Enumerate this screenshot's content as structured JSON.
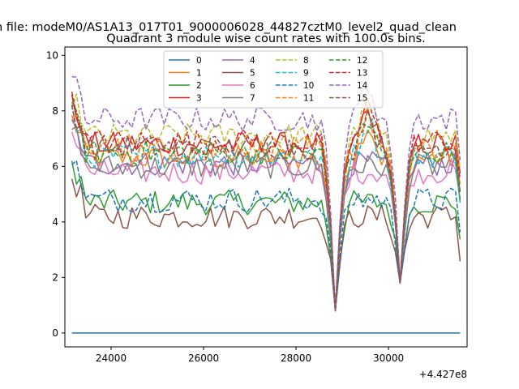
{
  "figure": {
    "suptitle": "n file: modeM0/AS1A13_017T01_9000006028_44827cztM0_level2_quad_clean"
  },
  "chart_data": {
    "type": "line",
    "title": "Quadrant 3 module wise count rates with 100.0s bins.",
    "xlabel": "",
    "ylabel": "",
    "x_offset_label": "+4.427e8",
    "xlim": [
      23000,
      31700
    ],
    "ylim": [
      -0.5,
      10.3
    ],
    "x_ticks": [
      24000,
      26000,
      28000,
      30000
    ],
    "y_ticks": [
      0,
      2,
      4,
      6,
      8,
      10
    ],
    "grid": false,
    "legend": {
      "placement": "top-center",
      "columns": 4
    },
    "x": {
      "start": 23150,
      "step": 100,
      "count": 85
    },
    "series": [
      {
        "name": "0",
        "color": "#1f77b4",
        "dash": "solid",
        "base": 0.0,
        "values": []
      },
      {
        "name": "1",
        "color": "#ff7f0e",
        "dash": "solid",
        "base": 6.3,
        "values": []
      },
      {
        "name": "2",
        "color": "#2ca02c",
        "dash": "solid",
        "base": 4.7,
        "values": []
      },
      {
        "name": "3",
        "color": "#d62728",
        "dash": "solid",
        "base": 6.8,
        "values": []
      },
      {
        "name": "4",
        "color": "#9467bd",
        "dash": "solid",
        "base": 6.1,
        "values": []
      },
      {
        "name": "5",
        "color": "#8c564b",
        "dash": "solid",
        "base": 4.2,
        "values": []
      },
      {
        "name": "6",
        "color": "#e377c2",
        "dash": "solid",
        "base": 5.8,
        "values": []
      },
      {
        "name": "7",
        "color": "#7f7f7f",
        "dash": "solid",
        "base": 6.0,
        "values": []
      },
      {
        "name": "8",
        "color": "#bcbd22",
        "dash": "dashed",
        "base": 7.1,
        "values": []
      },
      {
        "name": "9",
        "color": "#17becf",
        "dash": "dashed",
        "base": 6.4,
        "values": []
      },
      {
        "name": "10",
        "color": "#1f77b4",
        "dash": "dashed",
        "base": 4.8,
        "values": []
      },
      {
        "name": "11",
        "color": "#ff7f0e",
        "dash": "dashed",
        "base": 6.6,
        "values": []
      },
      {
        "name": "12",
        "color": "#2ca02c",
        "dash": "dashed",
        "base": 6.5,
        "values": []
      },
      {
        "name": "13",
        "color": "#d62728",
        "dash": "dashed",
        "base": 6.9,
        "values": []
      },
      {
        "name": "14",
        "color": "#9467bd",
        "dash": "dashed",
        "base": 7.7,
        "values": []
      },
      {
        "name": "15",
        "color": "#8c564b",
        "dash": "dashed",
        "base": 6.7,
        "values": []
      }
    ],
    "dips": [
      {
        "x": 28850,
        "min": 0.8
      },
      {
        "x": 30250,
        "min": 1.8
      }
    ]
  }
}
